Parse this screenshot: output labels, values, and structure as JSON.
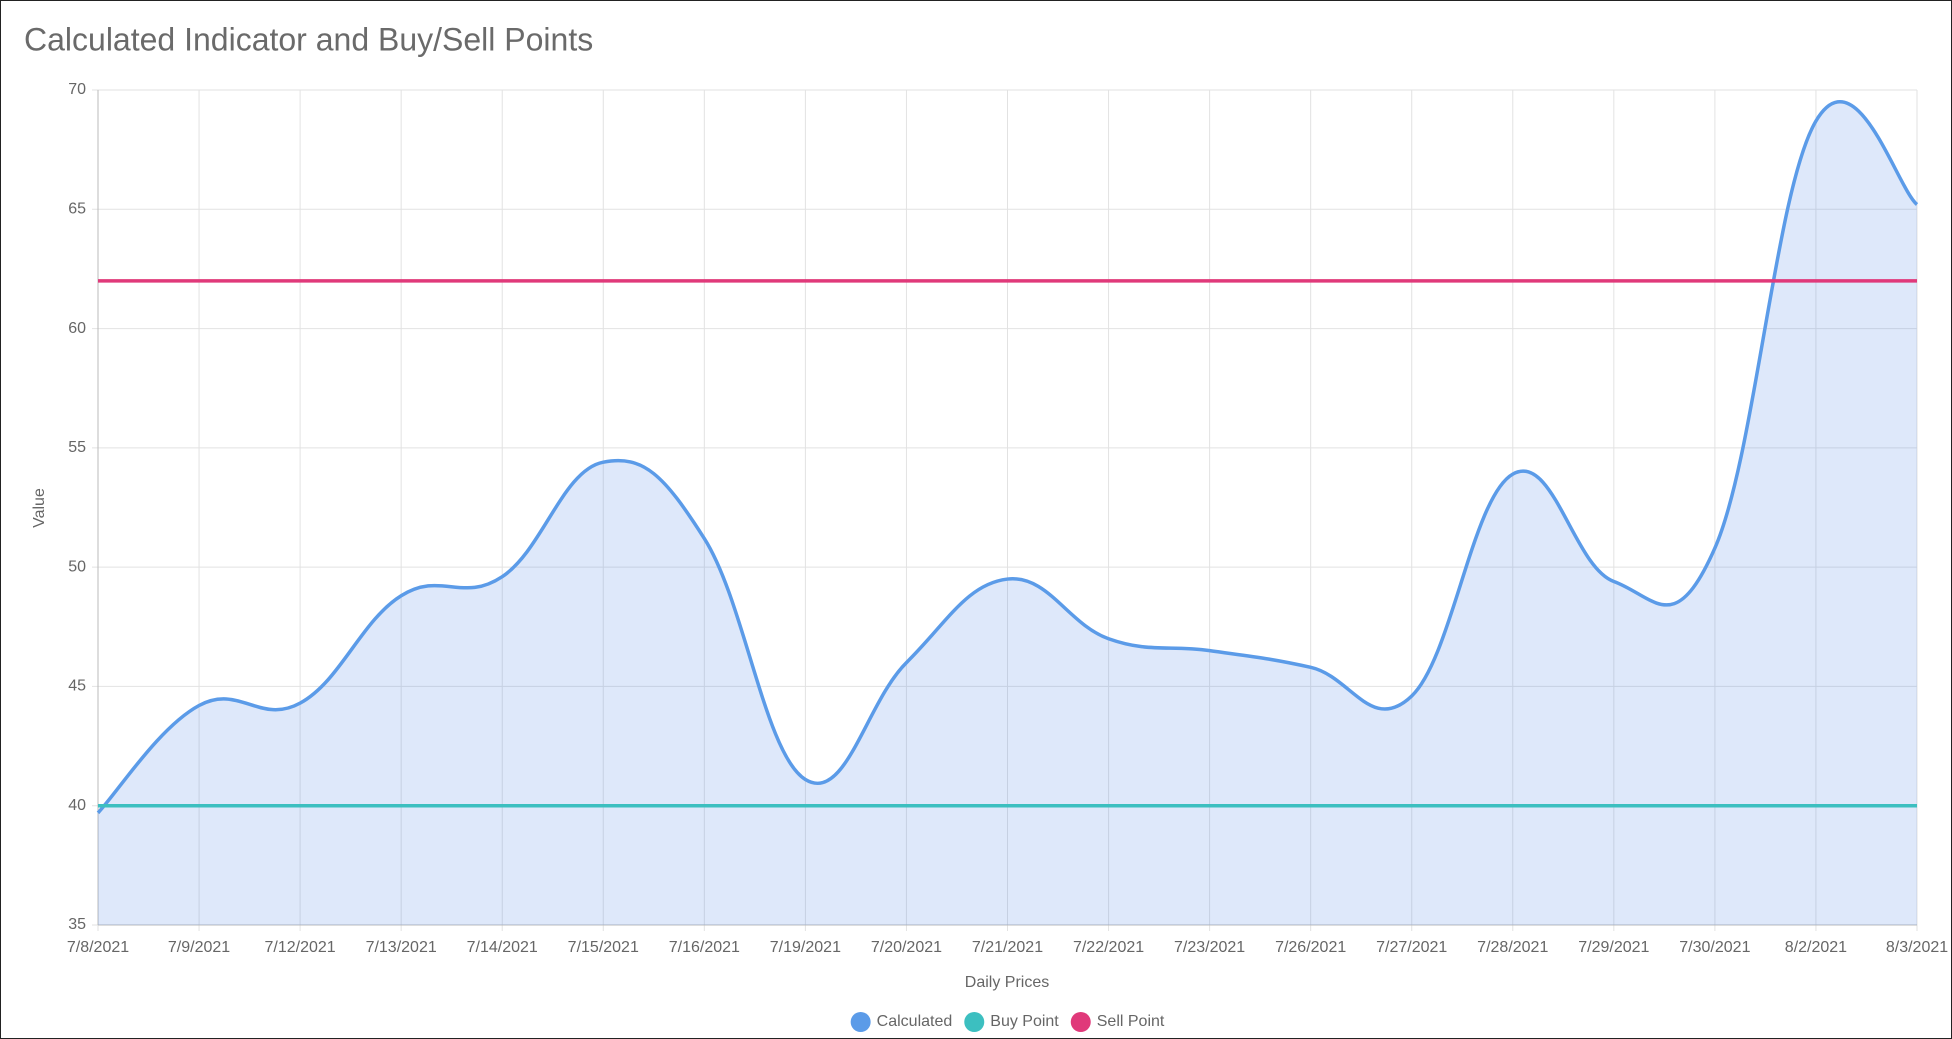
{
  "chart_data": {
    "type": "line",
    "title": "Calculated Indicator and Buy/Sell Points",
    "x_label": "Daily Prices",
    "y_label": "Value",
    "categories": [
      "7/8/2021",
      "7/9/2021",
      "7/12/2021",
      "7/13/2021",
      "7/14/2021",
      "7/15/2021",
      "7/16/2021",
      "7/19/2021",
      "7/20/2021",
      "7/21/2021",
      "7/22/2021",
      "7/23/2021",
      "7/26/2021",
      "7/27/2021",
      "7/28/2021",
      "7/29/2021",
      "7/30/2021",
      "8/2/2021",
      "8/3/2021"
    ],
    "series": [
      {
        "name": "Calculated",
        "color": "#5b9be8",
        "fill": "rgba(91,140,230,0.2)",
        "values": [
          39.7,
          44.2,
          44.3,
          48.8,
          49.6,
          54.4,
          51.2,
          41.1,
          46.0,
          49.5,
          47.0,
          46.5,
          45.8,
          44.6,
          53.9,
          49.4,
          50.8,
          68.7,
          65.2
        ]
      },
      {
        "name": "Buy Point",
        "color": "#3cbfc0",
        "values": [
          40,
          40,
          40,
          40,
          40,
          40,
          40,
          40,
          40,
          40,
          40,
          40,
          40,
          40,
          40,
          40,
          40,
          40,
          40
        ]
      },
      {
        "name": "Sell Point",
        "color": "#e0397a",
        "values": [
          62,
          62,
          62,
          62,
          62,
          62,
          62,
          62,
          62,
          62,
          62,
          62,
          62,
          62,
          62,
          62,
          62,
          62,
          62
        ]
      }
    ],
    "ylim": [
      35,
      70
    ],
    "yticks": [
      35,
      40,
      45,
      50,
      55,
      60,
      65,
      70
    ],
    "grid": true,
    "legend": "bottom"
  }
}
